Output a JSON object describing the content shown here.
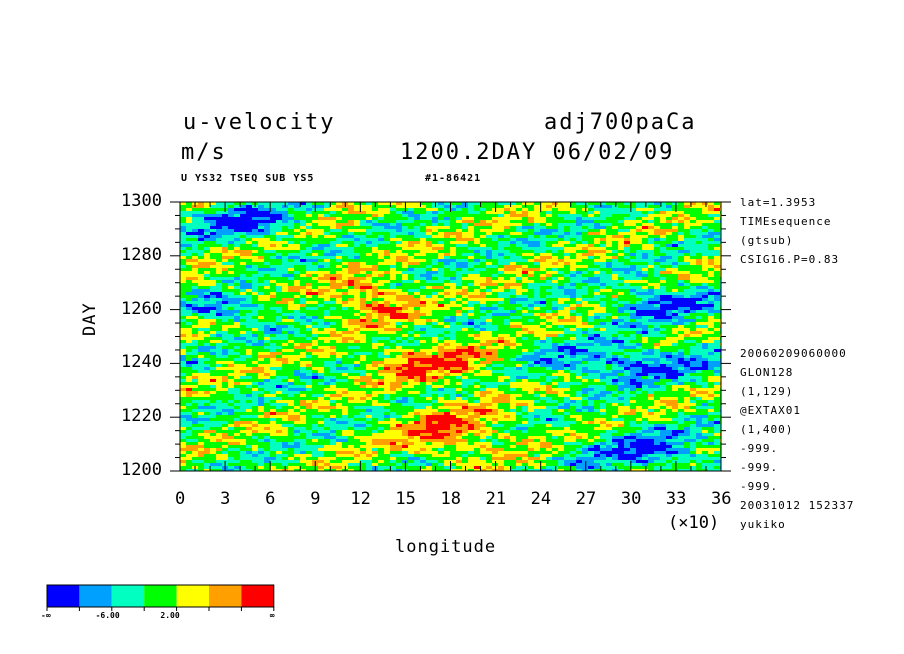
{
  "header": {
    "title_left_1": "u-velocity",
    "title_left_2": "m/s",
    "title_right_1": "adj700paCa",
    "title_right_2": "1200.2DAY 06/02/09",
    "subtitle_left": "U YS32 TSEQ SUB YS5",
    "subtitle_right": "#1-86421"
  },
  "side_info": {
    "top_lines": [
      "lat=1.3953",
      "TIMEsequence",
      "(gtsub)",
      "CSIG16.P=0.83"
    ],
    "bottom_lines": [
      "20060209060000",
      "GLON128",
      "(1,129)",
      "@EXTAX01",
      "(1,400)",
      "-999.",
      "-999.",
      "-999.",
      "20031012 152337",
      "yukiko"
    ]
  },
  "colorbar": {
    "colors": [
      "#0000ff",
      "#00a0ff",
      "#00ffc0",
      "#00ff00",
      "#ffff00",
      "#ffa000",
      "#ff0000"
    ],
    "labels": [
      "-∞",
      "-6.00",
      "2.00",
      "∞"
    ]
  },
  "chart_data": {
    "type": "heatmap",
    "title": "u-velocity",
    "xlabel": "longitude",
    "ylabel": "DAY",
    "x_multiplier": "(×10)",
    "xlim": [
      0,
      36
    ],
    "ylim": [
      1200,
      1300
    ],
    "x_ticks": [
      "0",
      "3",
      "6",
      "9",
      "12",
      "15",
      "18",
      "21",
      "24",
      "27",
      "30",
      "33",
      "36"
    ],
    "y_ticks": [
      "1200",
      "1220",
      "1240",
      "1260",
      "1280",
      "1300"
    ],
    "color_levels": [
      "-∞",
      "-6.00",
      "2.00",
      "∞"
    ],
    "grid": false,
    "regions": [
      {
        "level": "high",
        "x": [
          10,
          16
        ],
        "y": [
          1255,
          1272
        ]
      },
      {
        "level": "high",
        "x": [
          12,
          22
        ],
        "y": [
          1232,
          1248
        ]
      },
      {
        "level": "high",
        "x": [
          14,
          22
        ],
        "y": [
          1205,
          1225
        ]
      },
      {
        "level": "low",
        "x": [
          0,
          6
        ],
        "y": [
          1255,
          1265
        ]
      },
      {
        "level": "low",
        "x": [
          23,
          36
        ],
        "y": [
          1232,
          1248
        ]
      },
      {
        "level": "low",
        "x": [
          28,
          36
        ],
        "y": [
          1255,
          1270
        ]
      },
      {
        "level": "low",
        "x": [
          26,
          36
        ],
        "y": [
          1200,
          1215
        ]
      },
      {
        "level": "low",
        "x": [
          0,
          8
        ],
        "y": [
          1285,
          1300
        ]
      }
    ]
  }
}
